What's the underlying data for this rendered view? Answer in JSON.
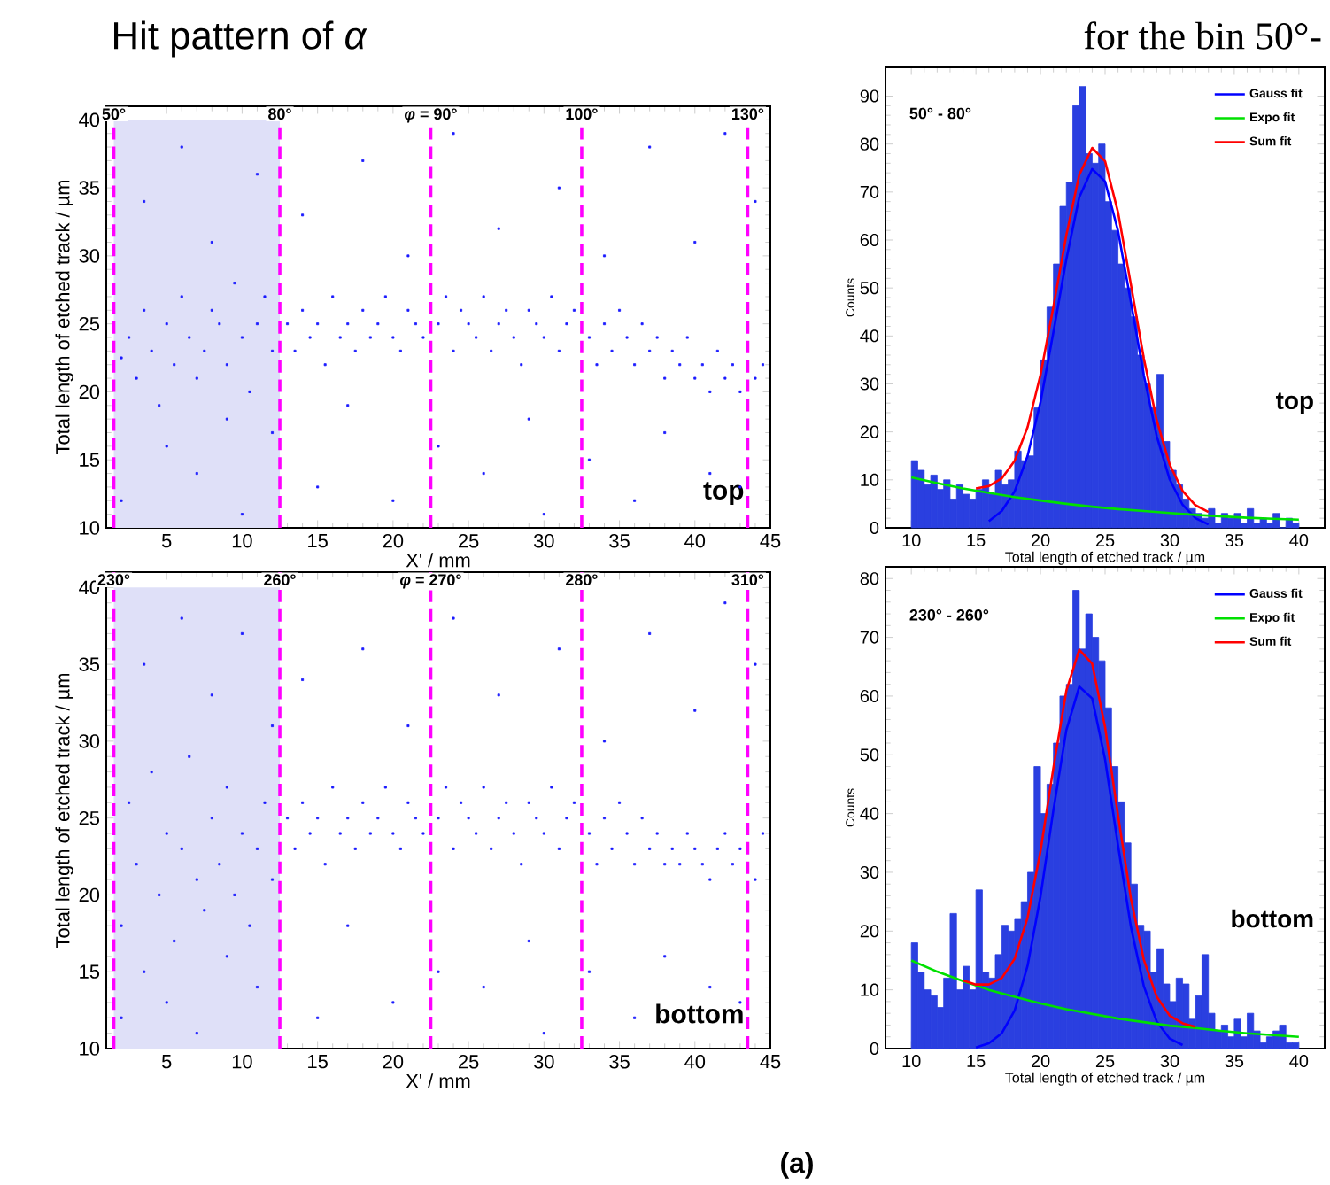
{
  "chart_data": [
    {
      "type": "scatter",
      "title": "Hit pattern of *α*",
      "xlabel": "X' / mm",
      "ylabel": "Total length of etched track / µm",
      "color": "#1a1aff",
      "marker": "square",
      "xlim": [
        1,
        45
      ],
      "ylim": [
        10,
        41
      ],
      "xticks": [
        5,
        10,
        15,
        20,
        25,
        30,
        35,
        40,
        45
      ],
      "yticks": [
        10,
        15,
        20,
        25,
        30,
        35,
        40
      ],
      "ref_lines": [
        {
          "axis": "x",
          "value": 1.5,
          "color": "#ff00ff",
          "line_style": "dashed"
        },
        {
          "axis": "x",
          "value": 12.5,
          "color": "#ff00ff",
          "line_style": "dashed"
        },
        {
          "axis": "x",
          "value": 22.5,
          "color": "#ff00ff",
          "line_style": "dashed"
        },
        {
          "axis": "x",
          "value": 32.5,
          "color": "#ff00ff",
          "line_style": "dashed"
        },
        {
          "axis": "x",
          "value": 43.5,
          "color": "#ff00ff",
          "line_style": "dashed"
        }
      ],
      "bands": [
        {
          "axis": "x",
          "from": 1.5,
          "to": 12.5,
          "color": "#dfe0f8"
        }
      ],
      "annotations": [
        "top",
        {
          "text": "50°",
          "x": 1.5,
          "y": 41
        },
        {
          "text": "80°",
          "x": 12.5,
          "y": 41
        },
        {
          "text": "*φ* = 90°",
          "x": 22.5,
          "y": 41
        },
        {
          "text": "100°",
          "x": 32.5,
          "y": 41
        },
        {
          "text": "130°",
          "x": 43.5,
          "y": 41
        }
      ],
      "x": [
        2,
        2.5,
        3,
        3.5,
        4,
        4.5,
        5,
        5.5,
        6,
        6.5,
        7,
        7.5,
        8,
        8.5,
        9,
        9.5,
        10,
        10.5,
        11,
        11.5,
        12,
        13,
        13.5,
        14,
        14.5,
        15,
        15.5,
        16,
        16.5,
        17,
        17.5,
        18,
        18.5,
        19,
        19.5,
        20,
        20.5,
        21,
        21.5,
        22,
        23,
        23.5,
        24,
        24.5,
        25,
        25.5,
        26,
        26.5,
        27,
        27.5,
        28,
        28.5,
        29,
        29.5,
        30,
        30.5,
        31,
        31.5,
        32,
        33,
        33.5,
        34,
        34.5,
        35,
        35.5,
        36,
        36.5,
        37,
        37.5,
        38,
        38.5,
        39,
        39.5,
        40,
        40.5,
        41,
        41.5,
        42,
        42.5,
        43,
        44,
        44.5,
        2,
        3.5,
        5,
        6,
        7,
        8,
        9,
        10,
        11,
        12,
        14,
        15,
        17,
        18,
        20,
        21,
        23,
        24,
        26,
        27,
        29,
        30,
        31,
        33,
        34,
        36,
        37,
        38,
        40,
        41,
        42,
        43,
        44
      ],
      "values": [
        22.5,
        24,
        21,
        26,
        23,
        19,
        25,
        22,
        27,
        24,
        21,
        23,
        26,
        25,
        22,
        28,
        24,
        20,
        25,
        27,
        23,
        25,
        23,
        26,
        24,
        25,
        22,
        27,
        24,
        25,
        23,
        26,
        24,
        25,
        27,
        24,
        23,
        26,
        25,
        24,
        25,
        27,
        23,
        26,
        25,
        24,
        27,
        23,
        25,
        26,
        24,
        22,
        26,
        25,
        24,
        27,
        23,
        25,
        26,
        24,
        22,
        25,
        23,
        26,
        24,
        22,
        25,
        23,
        24,
        21,
        23,
        22,
        24,
        21,
        22,
        20,
        23,
        21,
        22,
        20,
        21,
        22,
        12,
        34,
        16,
        38,
        14,
        31,
        18,
        11,
        36,
        17,
        33,
        13,
        19,
        37,
        12,
        30,
        16,
        39,
        14,
        32,
        18,
        11,
        35,
        15,
        30,
        12,
        38,
        17,
        31,
        14,
        39,
        13,
        34
      ]
    },
    {
      "type": "histogram",
      "title": "for the bin 50°-",
      "xlabel": "Total length of etched track / µm",
      "ylabel": "Counts",
      "color": "#2a3fe0",
      "legend": "top right",
      "xlim": [
        8,
        42
      ],
      "ylim": [
        0,
        96
      ],
      "xticks": [
        10,
        15,
        20,
        25,
        30,
        35,
        40
      ],
      "yticks": [
        0,
        10,
        20,
        30,
        40,
        50,
        60,
        70,
        80,
        90
      ],
      "annotations": [
        "50° - 80°",
        "top"
      ],
      "bins": [
        10,
        10.5,
        11,
        11.5,
        12,
        12.5,
        13,
        13.5,
        14,
        14.5,
        15,
        15.5,
        16,
        16.5,
        17,
        17.5,
        18,
        18.5,
        19,
        19.5,
        20,
        20.5,
        21,
        21.5,
        22,
        22.5,
        23,
        23.5,
        24,
        24.5,
        25,
        25.5,
        26,
        26.5,
        27,
        27.5,
        28,
        28.5,
        29,
        29.5,
        30,
        30.5,
        31,
        31.5,
        32,
        32.5,
        33,
        33.5,
        34,
        34.5,
        35,
        35.5,
        36,
        36.5,
        37,
        37.5,
        38,
        38.5,
        39,
        39.5,
        40
      ],
      "values": [
        14,
        12,
        9,
        11,
        8,
        10,
        6,
        9,
        7,
        6,
        8,
        10,
        7,
        12,
        9,
        10,
        16,
        14,
        15,
        25,
        35,
        46,
        55,
        67,
        72,
        88,
        92,
        78,
        76,
        80,
        68,
        62,
        55,
        50,
        44,
        36,
        30,
        25,
        32,
        18,
        12,
        9,
        6,
        4,
        3,
        2,
        4,
        1,
        3,
        2,
        3,
        1,
        4,
        1,
        2,
        1,
        3,
        0,
        2,
        1
      ],
      "series": [
        {
          "name": "Gauss fit",
          "type": "line",
          "color": "#0000ff",
          "x": [
            16,
            17,
            18,
            19,
            20,
            21,
            22,
            23,
            24,
            25,
            26,
            27,
            28,
            29,
            30,
            31,
            32,
            33
          ],
          "values": [
            1.4,
            3.5,
            7.6,
            15,
            26.2,
            40.8,
            56,
            68.9,
            74.8,
            72.2,
            61.9,
            47,
            31.8,
            19.1,
            10.1,
            4.8,
            2,
            0.7
          ]
        },
        {
          "name": "Expo fit",
          "type": "line",
          "color": "#00e000",
          "x": [
            10,
            12,
            14,
            16,
            18,
            20,
            22,
            24,
            26,
            28,
            30,
            32,
            34,
            36,
            38,
            40
          ],
          "values": [
            10.5,
            9.3,
            8.2,
            7.3,
            6.4,
            5.7,
            5,
            4.4,
            3.9,
            3.5,
            3.1,
            2.7,
            2.4,
            2.1,
            1.9,
            1.7
          ]
        },
        {
          "name": "Sum fit",
          "type": "line",
          "color": "#ff0000",
          "x": [
            15,
            16,
            17,
            18,
            19,
            20,
            21,
            22,
            23,
            24,
            25,
            26,
            27,
            28,
            29,
            30,
            31,
            32,
            33
          ],
          "values": [
            8.2,
            8.7,
            10.3,
            14,
            21,
            31.9,
            46.1,
            61,
            73.6,
            79.2,
            76.4,
            65.8,
            50.7,
            35.3,
            22.4,
            13.2,
            7.7,
            4.7,
            3.3
          ]
        }
      ]
    },
    {
      "type": "scatter",
      "xlabel": "X' / mm",
      "ylabel": "Total length of etched track / µm",
      "color": "#1a1aff",
      "marker": "square",
      "xlim": [
        1,
        45
      ],
      "ylim": [
        10,
        41
      ],
      "xticks": [
        5,
        10,
        15,
        20,
        25,
        30,
        35,
        40,
        45
      ],
      "yticks": [
        10,
        15,
        20,
        25,
        30,
        35,
        40
      ],
      "ref_lines": [
        {
          "axis": "x",
          "value": 1.5,
          "color": "#ff00ff",
          "line_style": "dashed"
        },
        {
          "axis": "x",
          "value": 12.5,
          "color": "#ff00ff",
          "line_style": "dashed"
        },
        {
          "axis": "x",
          "value": 22.5,
          "color": "#ff00ff",
          "line_style": "dashed"
        },
        {
          "axis": "x",
          "value": 32.5,
          "color": "#ff00ff",
          "line_style": "dashed"
        },
        {
          "axis": "x",
          "value": 43.5,
          "color": "#ff00ff",
          "line_style": "dashed"
        }
      ],
      "bands": [
        {
          "axis": "x",
          "from": 1.5,
          "to": 12.5,
          "color": "#dfe0f8"
        }
      ],
      "annotations": [
        "bottom",
        "(a)",
        {
          "text": "230°",
          "x": 1.5,
          "y": 41
        },
        {
          "text": "260°",
          "x": 12.5,
          "y": 41
        },
        {
          "text": "*φ* = 270°",
          "x": 22.5,
          "y": 41
        },
        {
          "text": "280°",
          "x": 32.5,
          "y": 41
        },
        {
          "text": "310°",
          "x": 43.5,
          "y": 41
        }
      ],
      "x": [
        2,
        2.5,
        3,
        3.5,
        4,
        4.5,
        5,
        5.5,
        6,
        6.5,
        7,
        7.5,
        8,
        8.5,
        9,
        9.5,
        10,
        10.5,
        11,
        11.5,
        12,
        13,
        13.5,
        14,
        14.5,
        15,
        15.5,
        16,
        16.5,
        17,
        17.5,
        18,
        18.5,
        19,
        19.5,
        20,
        20.5,
        21,
        21.5,
        22,
        23,
        23.5,
        24,
        24.5,
        25,
        25.5,
        26,
        26.5,
        27,
        27.5,
        28,
        28.5,
        29,
        29.5,
        30,
        30.5,
        31,
        31.5,
        32,
        33,
        33.5,
        34,
        34.5,
        35,
        35.5,
        36,
        36.5,
        37,
        37.5,
        38,
        38.5,
        39,
        39.5,
        40,
        40.5,
        41,
        41.5,
        42,
        42.5,
        43,
        44,
        44.5,
        2,
        3.5,
        5,
        6,
        7,
        8,
        9,
        10,
        11,
        12,
        14,
        15,
        17,
        18,
        20,
        21,
        23,
        24,
        26,
        27,
        29,
        30,
        31,
        33,
        34,
        36,
        37,
        38,
        40,
        41,
        42,
        43,
        44
      ],
      "values": [
        18,
        26,
        22,
        15,
        28,
        20,
        24,
        17,
        23,
        29,
        21,
        19,
        25,
        22,
        27,
        20,
        24,
        18,
        23,
        26,
        21,
        25,
        23,
        26,
        24,
        25,
        22,
        27,
        24,
        25,
        23,
        26,
        24,
        25,
        27,
        24,
        23,
        26,
        25,
        24,
        25,
        27,
        23,
        26,
        25,
        24,
        27,
        23,
        25,
        26,
        24,
        22,
        26,
        25,
        24,
        27,
        23,
        25,
        26,
        24,
        22,
        25,
        23,
        26,
        24,
        22,
        25,
        23,
        24,
        22,
        23,
        22,
        24,
        23,
        22,
        21,
        23,
        24,
        22,
        23,
        21,
        24,
        12,
        35,
        13,
        38,
        11,
        33,
        16,
        37,
        14,
        31,
        34,
        12,
        18,
        36,
        13,
        31,
        15,
        38,
        14,
        33,
        17,
        11,
        36,
        15,
        30,
        12,
        37,
        16,
        32,
        14,
        39,
        13,
        35
      ]
    },
    {
      "type": "histogram",
      "xlabel": "Total length of etched track / µm",
      "ylabel": "Counts",
      "color": "#2a3fe0",
      "legend": "top right",
      "xlim": [
        8,
        42
      ],
      "ylim": [
        0,
        82
      ],
      "xticks": [
        10,
        15,
        20,
        25,
        30,
        35,
        40
      ],
      "yticks": [
        0,
        10,
        20,
        30,
        40,
        50,
        60,
        70,
        80
      ],
      "annotations": [
        "230° - 260°",
        "bottom"
      ],
      "bins": [
        10,
        10.5,
        11,
        11.5,
        12,
        12.5,
        13,
        13.5,
        14,
        14.5,
        15,
        15.5,
        16,
        16.5,
        17,
        17.5,
        18,
        18.5,
        19,
        19.5,
        20,
        20.5,
        21,
        21.5,
        22,
        22.5,
        23,
        23.5,
        24,
        24.5,
        25,
        25.5,
        26,
        26.5,
        27,
        27.5,
        28,
        28.5,
        29,
        29.5,
        30,
        30.5,
        31,
        31.5,
        32,
        32.5,
        33,
        33.5,
        34,
        34.5,
        35,
        35.5,
        36,
        36.5,
        37,
        37.5,
        38,
        38.5,
        39,
        39.5,
        40
      ],
      "values": [
        18,
        13,
        10,
        9,
        7,
        12,
        23,
        10,
        14,
        10,
        27,
        13,
        12,
        16,
        21,
        20,
        22,
        25,
        30,
        48,
        40,
        45,
        52,
        60,
        62,
        78,
        68,
        74,
        70,
        66,
        58,
        48,
        42,
        35,
        28,
        21,
        20,
        13,
        17,
        11,
        8,
        12,
        11,
        5,
        9,
        16,
        6,
        3,
        4,
        2,
        5,
        2,
        6,
        3,
        1,
        2,
        3,
        4,
        1,
        1
      ],
      "series": [
        {
          "name": "Gauss fit",
          "type": "line",
          "color": "#0000ff",
          "x": [
            15,
            16,
            17,
            18,
            19,
            20,
            21,
            22,
            23,
            24,
            25,
            26,
            27,
            28,
            29,
            30,
            31
          ],
          "values": [
            0.2,
            0.9,
            2.6,
            6.5,
            14.1,
            25.9,
            40.6,
            54.2,
            61.6,
            59.6,
            49.2,
            34.6,
            20.7,
            10.6,
            4.6,
            1.7,
            0.6
          ]
        },
        {
          "name": "Expo fit",
          "type": "line",
          "color": "#00e000",
          "x": [
            10,
            12,
            14,
            16,
            18,
            20,
            22,
            24,
            26,
            28,
            30,
            32,
            34,
            36,
            38,
            40
          ],
          "values": [
            15,
            13.1,
            11.5,
            10,
            8.8,
            7.7,
            6.7,
            5.9,
            5.1,
            4.5,
            3.9,
            3.5,
            3,
            2.6,
            2.3,
            2
          ]
        },
        {
          "name": "Sum fit",
          "type": "line",
          "color": "#ff0000",
          "x": [
            14,
            15,
            16,
            17,
            18,
            19,
            20,
            21,
            22,
            23,
            24,
            25,
            26,
            27,
            28,
            29,
            30,
            31,
            32
          ],
          "values": [
            11.6,
            10.9,
            10.9,
            12,
            15.3,
            22.3,
            33.6,
            47.8,
            60.9,
            67.9,
            65.5,
            54.7,
            39.7,
            25.5,
            15.1,
            8.8,
            5.6,
            4.3,
            3.7
          ]
        }
      ]
    }
  ]
}
